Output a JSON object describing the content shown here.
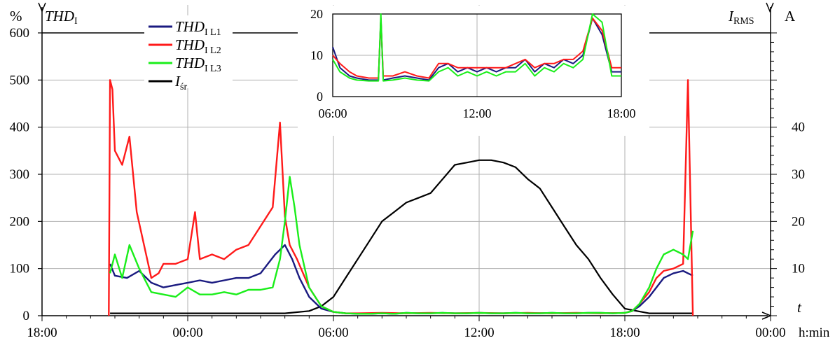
{
  "chart_data": [
    {
      "type": "line",
      "title": "",
      "x_ticks": [
        "18:00",
        "00:00",
        "06:00",
        "12:00",
        "18:00",
        "00:00"
      ],
      "x_unit": "h:min",
      "x_axis_symbol": "t",
      "y_left": {
        "symbol": "THD",
        "subscript": "I",
        "unit": "%",
        "ticks": [
          0,
          100,
          200,
          300,
          400,
          500,
          600
        ],
        "ylim": [
          0,
          600
        ]
      },
      "y_right": {
        "symbol": "I",
        "subscript": "RMS",
        "unit": "A",
        "ticks": [
          10,
          20,
          30,
          40
        ],
        "ylim": [
          0,
          60
        ]
      },
      "grid": true,
      "legend": {
        "placement": "top-left",
        "entries": [
          {
            "symbol": "THD",
            "subscript": "I L1",
            "color": "#1a1a80"
          },
          {
            "symbol": "THD",
            "subscript": "I L2",
            "color": "#ff1a1a"
          },
          {
            "symbol": "THD",
            "subscript": "I L3",
            "color": "#1aee1a"
          },
          {
            "symbol": "I",
            "subscript": "śr",
            "color": "#000000"
          }
        ]
      },
      "series": [
        {
          "key": "l1",
          "color": "#1a1a80",
          "axis": "left",
          "x": [
            20.8,
            21.0,
            21.5,
            22.0,
            22.5,
            23.0,
            23.5,
            24.0,
            24.5,
            25.0,
            25.5,
            26.0,
            26.5,
            27.0,
            27.3,
            27.6,
            28.0,
            28.3,
            28.6,
            29.0,
            29.5,
            30.0,
            30.5,
            31.0,
            31.5,
            32.0,
            32.5,
            33.0,
            33.5,
            34.0,
            34.5,
            35.0,
            35.5,
            36.0,
            36.5,
            37.0,
            37.5,
            38.0,
            38.5,
            39.0,
            39.5,
            40.0,
            40.5,
            41.0,
            41.5,
            42.0,
            42.3,
            42.6,
            43.0,
            43.3,
            43.6,
            44.0,
            44.4,
            44.6,
            44.8
          ],
          "y": [
            110,
            85,
            80,
            95,
            70,
            60,
            65,
            70,
            75,
            70,
            75,
            80,
            80,
            90,
            110,
            130,
            150,
            120,
            80,
            40,
            15,
            8,
            5,
            4,
            4,
            5,
            4,
            6,
            5,
            5,
            6,
            5,
            5,
            6,
            5,
            5,
            6,
            5,
            5,
            6,
            5,
            5,
            6,
            6,
            5,
            6,
            10,
            20,
            40,
            60,
            80,
            90,
            95,
            90,
            85
          ]
        },
        {
          "key": "l2",
          "color": "#ff1a1a",
          "axis": "left",
          "x": [
            20.75,
            20.8,
            20.9,
            21.0,
            21.3,
            21.6,
            21.9,
            22.2,
            22.5,
            22.8,
            23.0,
            23.5,
            24.0,
            24.3,
            24.5,
            25.0,
            25.5,
            26.0,
            26.5,
            27.0,
            27.5,
            27.8,
            28.0,
            28.2,
            28.5,
            29.0,
            29.5,
            30.0,
            30.5,
            31.0,
            32.0,
            33.0,
            34.0,
            35.0,
            36.0,
            37.0,
            38.0,
            39.0,
            40.0,
            41.0,
            42.0,
            42.3,
            42.6,
            43.0,
            43.3,
            43.6,
            44.0,
            44.4,
            44.6,
            44.8
          ],
          "y": [
            0,
            500,
            480,
            350,
            320,
            380,
            220,
            150,
            80,
            90,
            110,
            110,
            120,
            220,
            120,
            130,
            120,
            140,
            150,
            190,
            230,
            410,
            210,
            150,
            120,
            60,
            20,
            8,
            5,
            5,
            6,
            5,
            6,
            5,
            6,
            5,
            6,
            5,
            6,
            5,
            6,
            10,
            25,
            50,
            80,
            95,
            100,
            110,
            500,
            0
          ]
        },
        {
          "key": "l3",
          "color": "#1aee1a",
          "axis": "left",
          "x": [
            20.8,
            21.0,
            21.3,
            21.6,
            22.0,
            22.5,
            23.0,
            23.5,
            24.0,
            24.5,
            25.0,
            25.5,
            26.0,
            26.5,
            27.0,
            27.5,
            27.8,
            28.0,
            28.2,
            28.4,
            28.6,
            29.0,
            29.5,
            30.0,
            30.5,
            31.0,
            31.5,
            32.0,
            32.5,
            33.0,
            33.5,
            34.0,
            34.5,
            35.0,
            35.5,
            36.0,
            36.5,
            37.0,
            37.5,
            38.0,
            38.5,
            39.0,
            39.5,
            40.0,
            40.5,
            41.0,
            41.5,
            42.0,
            42.3,
            42.6,
            43.0,
            43.3,
            43.6,
            44.0,
            44.4,
            44.6,
            44.8
          ],
          "y": [
            90,
            130,
            80,
            150,
            100,
            50,
            45,
            40,
            60,
            45,
            45,
            50,
            45,
            55,
            55,
            60,
            120,
            200,
            295,
            230,
            150,
            60,
            20,
            8,
            5,
            4,
            4,
            5,
            4,
            6,
            5,
            5,
            6,
            5,
            5,
            6,
            5,
            5,
            6,
            5,
            5,
            6,
            5,
            5,
            6,
            6,
            5,
            6,
            10,
            25,
            60,
            100,
            130,
            140,
            130,
            120,
            180
          ]
        },
        {
          "key": "irms",
          "color": "#000000",
          "axis": "right",
          "x": [
            20.8,
            22.0,
            24.0,
            26.0,
            28.0,
            29.0,
            29.5,
            30.0,
            30.5,
            31.0,
            31.5,
            32.0,
            32.5,
            33.0,
            33.5,
            34.0,
            34.5,
            35.0,
            35.5,
            36.0,
            36.5,
            37.0,
            37.5,
            38.0,
            38.5,
            39.0,
            39.5,
            40.0,
            40.5,
            41.0,
            41.5,
            42.0,
            42.5,
            43.0,
            44.0,
            44.8
          ],
          "y": [
            0.5,
            0.5,
            0.5,
            0.5,
            0.5,
            1.0,
            2.0,
            4.0,
            8.0,
            12.0,
            16.0,
            20.0,
            22.0,
            24.0,
            25.0,
            26.0,
            29.0,
            32.0,
            32.5,
            33.0,
            33.0,
            32.5,
            31.5,
            29.0,
            27.0,
            23.0,
            19.0,
            15.0,
            12.0,
            8.0,
            4.5,
            1.5,
            1.0,
            0.5,
            0.5,
            0.5
          ]
        }
      ]
    },
    {
      "type": "line",
      "title": "",
      "x_ticks": [
        "06:00",
        "12:00",
        "18:00"
      ],
      "ylim": [
        0,
        20
      ],
      "y_ticks": [
        0,
        10,
        20
      ],
      "grid": true,
      "series": [
        {
          "key": "l1",
          "color": "#1a1a80",
          "x": [
            6.0,
            6.3,
            6.7,
            7.0,
            7.5,
            7.9,
            8.0,
            8.1,
            8.5,
            9.0,
            9.5,
            10.0,
            10.4,
            10.8,
            11.2,
            11.6,
            12.0,
            12.4,
            12.8,
            13.2,
            13.6,
            14.0,
            14.4,
            14.8,
            15.2,
            15.6,
            16.0,
            16.4,
            16.8,
            17.2,
            17.6,
            18.0
          ],
          "y": [
            12,
            7,
            5,
            4.5,
            4,
            4,
            19,
            4,
            4.5,
            5,
            4.5,
            4,
            7,
            8,
            6,
            7,
            6,
            7,
            6,
            7,
            7,
            9,
            6,
            8,
            7,
            9,
            8,
            10,
            19,
            15,
            6,
            6
          ]
        },
        {
          "key": "l2",
          "color": "#ff1a1a",
          "x": [
            6.0,
            6.3,
            6.7,
            7.0,
            7.5,
            7.9,
            8.0,
            8.1,
            8.5,
            9.0,
            9.5,
            10.0,
            10.4,
            10.8,
            11.2,
            11.6,
            12.0,
            12.4,
            12.8,
            13.2,
            13.6,
            14.0,
            14.4,
            14.8,
            15.2,
            15.6,
            16.0,
            16.4,
            16.8,
            17.2,
            17.6,
            18.0
          ],
          "y": [
            10,
            8,
            6,
            5,
            4.5,
            4.5,
            19,
            5,
            5,
            6,
            5,
            4.5,
            8,
            8,
            7,
            7,
            7,
            7,
            7,
            7,
            8,
            9,
            7,
            8,
            8,
            9,
            9,
            11,
            19,
            16,
            7,
            7
          ]
        },
        {
          "key": "l3",
          "color": "#1aee1a",
          "x": [
            6.0,
            6.3,
            6.7,
            7.0,
            7.5,
            7.9,
            8.0,
            8.1,
            8.5,
            9.0,
            9.5,
            10.0,
            10.4,
            10.8,
            11.2,
            11.6,
            12.0,
            12.4,
            12.8,
            13.2,
            13.6,
            14.0,
            14.4,
            14.8,
            15.2,
            15.6,
            16.0,
            16.4,
            16.8,
            17.2,
            17.6,
            18.0
          ],
          "y": [
            9,
            6,
            4.5,
            4,
            3.8,
            3.8,
            20,
            3.8,
            4,
            4.5,
            4,
            3.8,
            6,
            7,
            5,
            6,
            5,
            6,
            5,
            6,
            6,
            8,
            5,
            7,
            6,
            8,
            7,
            9,
            20,
            18,
            5,
            5
          ]
        }
      ]
    }
  ]
}
